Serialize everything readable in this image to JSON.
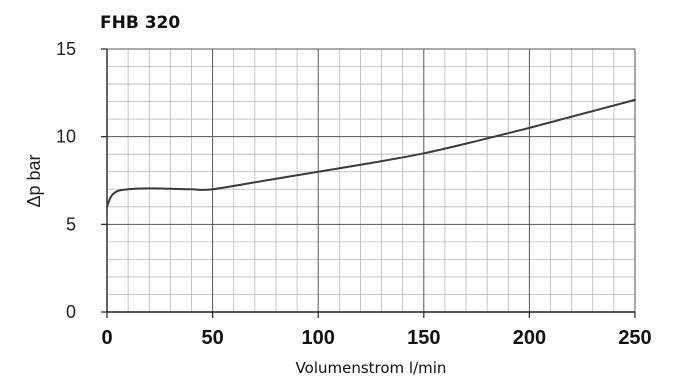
{
  "chart_data": {
    "type": "line",
    "title": "FHB 320",
    "xlabel": "Volumenstrom l/min",
    "ylabel": "Δp bar",
    "xlim": [
      0,
      250
    ],
    "ylim": [
      0,
      15
    ],
    "x_ticks": [
      0,
      50,
      100,
      150,
      200,
      250
    ],
    "y_ticks": [
      0,
      5,
      10,
      15
    ],
    "grid": true,
    "series": [
      {
        "x": [
          0,
          2,
          5,
          10,
          20,
          30,
          40,
          50,
          75,
          100,
          125,
          150,
          175,
          200,
          225,
          250
        ],
        "values": [
          6.0,
          6.6,
          6.9,
          7.0,
          7.05,
          7.03,
          7.0,
          7.0,
          7.5,
          8.0,
          8.5,
          9.05,
          9.75,
          10.5,
          11.3,
          12.1
        ]
      }
    ],
    "colors": {
      "line": "#3a3a3a",
      "grid_major": "#555555",
      "grid_minor": "#b8b8b8",
      "axis": "#222222"
    }
  }
}
